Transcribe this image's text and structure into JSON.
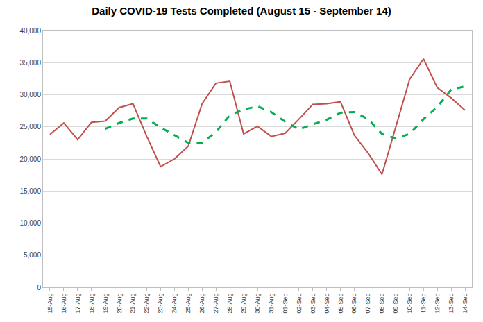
{
  "chart_data": {
    "type": "line",
    "title": "Daily COVID-19 Tests Completed (August 15 - September 14)",
    "categories": [
      "15-Aug",
      "16-Aug",
      "17-Aug",
      "18-Aug",
      "19-Aug",
      "20-Aug",
      "21-Aug",
      "22-Aug",
      "23-Aug",
      "24-Aug",
      "25-Aug",
      "26-Aug",
      "27-Aug",
      "28-Aug",
      "29-Aug",
      "30-Aug",
      "31-Aug",
      "01-Sep",
      "02-Sep",
      "03-Sep",
      "04-Sep",
      "05-Sep",
      "06-Sep",
      "07-Sep",
      "08-Sep",
      "09-Sep",
      "10-Sep",
      "11-Sep",
      "12-Sep",
      "13-Sep",
      "14-Sep"
    ],
    "series": [
      {
        "color": "#c0504d",
        "line_style": "solid",
        "values": [
          23800,
          25600,
          23000,
          25700,
          25900,
          28000,
          28600,
          23500,
          18800,
          20000,
          22000,
          28600,
          31800,
          32100,
          23900,
          25100,
          23500,
          24000,
          26200,
          28500,
          28600,
          28900,
          23700,
          20900,
          17600,
          25100,
          32400,
          35600,
          31100,
          29500,
          27600
        ]
      },
      {
        "color": "#00b050",
        "line_style": "dashed",
        "values": [
          null,
          null,
          null,
          null,
          24700,
          25600,
          26300,
          26300,
          24900,
          23700,
          22500,
          22500,
          24200,
          26800,
          27700,
          28200,
          27300,
          25800,
          24600,
          25400,
          26100,
          27200,
          27300,
          26200,
          23900,
          23200,
          23900,
          26200,
          28100,
          30800,
          31300
        ]
      }
    ],
    "ylim": [
      0,
      40000
    ],
    "yticks": [
      0,
      {
        "value": 5000,
        "label": "5,000"
      },
      {
        "value": 10000,
        "label": "10,000"
      },
      {
        "value": 15000,
        "label": "15,000"
      },
      {
        "value": 20000,
        "label": "20,000"
      },
      {
        "value": 25000,
        "label": "25,000"
      },
      {
        "value": 30000,
        "label": "30,000"
      },
      {
        "value": 35000,
        "label": "35,000"
      },
      {
        "value": 40000,
        "label": "40,000"
      }
    ],
    "grid": true
  }
}
